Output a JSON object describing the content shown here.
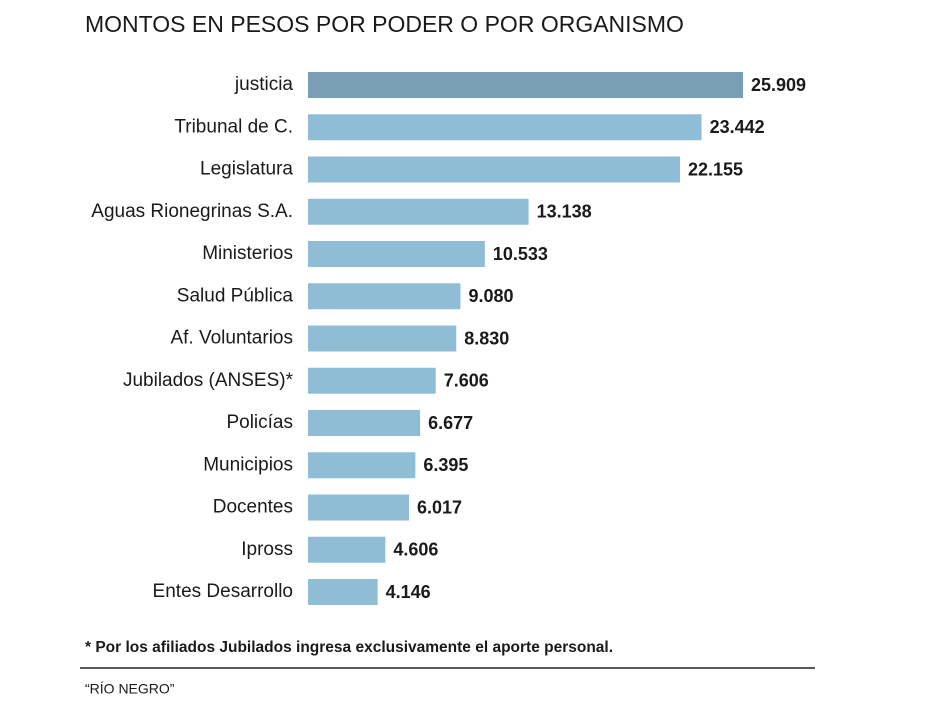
{
  "chart_data": {
    "type": "bar",
    "orientation": "horizontal",
    "title": "MONTOS EN PESOS POR PODER O POR ORGANISMO",
    "categories": [
      "justicia",
      "Tribunal de C.",
      "Legislatura",
      "Aguas Rionegrinas S.A.",
      "Ministerios",
      "Salud Pública",
      "Af. Voluntarios",
      "Jubilados (ANSES)*",
      "Policías",
      "Municipios",
      "Docentes",
      "Ipross",
      "Entes Desarrollo"
    ],
    "values": [
      25909,
      23442,
      22155,
      13138,
      10533,
      9080,
      8830,
      7606,
      6677,
      6395,
      6017,
      4606,
      4146
    ],
    "value_labels": [
      "25.909",
      "23.442",
      "22.155",
      "13.138",
      "10.533",
      "9.080",
      "8.830",
      "7.606",
      "6.677",
      "6.395",
      "6.017",
      "4.606",
      "4.146"
    ],
    "colors": [
      "#789fb3",
      "#8fbdd6",
      "#8fbdd6",
      "#8fbdd6",
      "#8fbdd6",
      "#8fbdd6",
      "#8fbdd6",
      "#8fbdd6",
      "#8fbdd6",
      "#8fbdd6",
      "#8fbdd6",
      "#8fbdd6",
      "#8fbdd6"
    ],
    "note": "* Por los afiliados Jubilados ingresa exclusivamente el aporte personal.",
    "source": "“RÍO NEGRO”"
  }
}
